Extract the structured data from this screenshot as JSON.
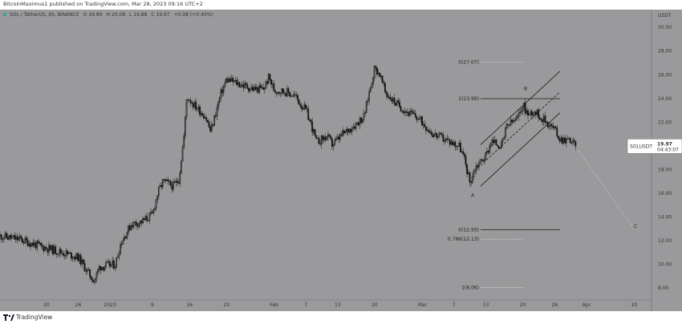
{
  "publisher": "BitcoinMaximus1 published on TradingView.com, Mar 28, 2023 09:16 UTC+2",
  "branding": "TradingView",
  "legend": {
    "pair": "SOL / TetherUS, 6h, BINANCE",
    "o_label": "O",
    "o_value": "19.89",
    "h_label": "H",
    "h_value": "20.08",
    "l_label": "L",
    "l_value": "19.88",
    "c_label": "C",
    "c_value": "19.97",
    "change": "+0.08 (+0.40%)",
    "status_color": "#26a69a"
  },
  "price_tag": {
    "symbol": "SOLUSDT",
    "price": "19.97",
    "countdown": "04:43:07"
  },
  "colors": {
    "background": "#9a9a9c",
    "candle": "#111111",
    "line": "#1a1a1a",
    "projection": "#cfcfcf"
  },
  "chart_data": {
    "type": "candlestick",
    "y_axis_title": "USDT",
    "y_ticks": [
      "8.00",
      "10.00",
      "12.00",
      "14.00",
      "16.00",
      "18.00",
      "20.00",
      "22.00",
      "24.00",
      "26.00",
      "28.00",
      "30.00"
    ],
    "ylim": [
      7,
      31.5
    ],
    "x_ticks": [
      "20",
      "26",
      "2023",
      "9",
      "16",
      "23",
      "Feb",
      "7",
      "13",
      "20",
      "Mar",
      "7",
      "13",
      "20",
      "26",
      "Apr",
      "10"
    ],
    "x_tick_days": [
      -12,
      -6,
      0,
      8,
      15,
      22,
      31,
      37,
      43,
      50,
      59,
      65,
      71,
      78,
      84,
      90,
      99
    ],
    "xlim": [
      -20.8,
      102.3
    ],
    "close_path": [
      [
        -20.8,
        12.4
      ],
      [
        -17,
        12.1
      ],
      [
        -13,
        11.5
      ],
      [
        -9,
        11.0
      ],
      [
        -6,
        10.6
      ],
      [
        -4,
        9.2
      ],
      [
        -3,
        8.6
      ],
      [
        -2,
        9.8
      ],
      [
        1,
        10.0
      ],
      [
        2,
        11.8
      ],
      [
        4,
        13.4
      ],
      [
        6,
        13.6
      ],
      [
        8,
        14.2
      ],
      [
        9,
        16.0
      ],
      [
        10,
        17.0
      ],
      [
        12,
        16.6
      ],
      [
        13,
        17.2
      ],
      [
        14,
        21.0
      ],
      [
        14.5,
        24.2
      ],
      [
        16,
        23.4
      ],
      [
        18,
        22.5
      ],
      [
        19,
        21.2
      ],
      [
        21,
        24.5
      ],
      [
        22,
        25.6
      ],
      [
        24,
        25.3
      ],
      [
        27,
        24.8
      ],
      [
        29,
        24.8
      ],
      [
        30,
        25.8
      ],
      [
        31,
        24.7
      ],
      [
        33,
        24.6
      ],
      [
        35,
        24.2
      ],
      [
        36,
        23.5
      ],
      [
        37,
        23.0
      ],
      [
        38,
        21.8
      ],
      [
        39,
        20.3
      ],
      [
        41,
        20.8
      ],
      [
        42,
        20.1
      ],
      [
        44,
        21.0
      ],
      [
        46,
        21.7
      ],
      [
        48,
        22.5
      ],
      [
        49,
        24.6
      ],
      [
        50,
        26.6
      ],
      [
        51,
        26.0
      ],
      [
        52,
        24.5
      ],
      [
        54,
        23.6
      ],
      [
        56,
        22.9
      ],
      [
        58,
        22.4
      ],
      [
        59,
        22.0
      ],
      [
        61,
        21.0
      ],
      [
        63,
        20.6
      ],
      [
        66,
        20.0
      ],
      [
        67,
        18.8
      ],
      [
        68,
        16.9
      ],
      [
        69,
        18.2
      ],
      [
        71,
        19.2
      ],
      [
        72,
        20.4
      ],
      [
        74,
        20.0
      ],
      [
        75,
        21.7
      ],
      [
        77,
        22.3
      ],
      [
        78,
        23.5
      ],
      [
        79,
        22.6
      ],
      [
        80,
        23.0
      ],
      [
        81,
        22.6
      ],
      [
        82,
        22.2
      ],
      [
        84,
        21.4
      ],
      [
        85,
        20.6
      ],
      [
        87,
        20.5
      ],
      [
        88,
        19.97
      ]
    ],
    "channel_lines": [
      {
        "from": [
          70,
          20.1
        ],
        "to": [
          85,
          26.3
        ]
      },
      {
        "from": [
          70,
          16.6
        ],
        "to": [
          85,
          22.8
        ]
      },
      {
        "from": [
          70,
          18.35
        ],
        "to": [
          85,
          24.55
        ],
        "dashed": true
      }
    ],
    "horizontal_levels": [
      {
        "label": "0(27.07)",
        "value": 27.07,
        "x_from": 70,
        "x_to": 78,
        "dotted": true
      },
      {
        "label": "1(23.99)",
        "value": 23.99,
        "x_from": 70,
        "x_to": 85,
        "dotted": false
      },
      {
        "label": "0(12.93)",
        "value": 12.93,
        "x_from": 70,
        "x_to": 85,
        "dotted": false
      },
      {
        "label": "0.786(12.13)",
        "value": 12.13,
        "x_from": 70,
        "x_to": 78,
        "dotted": true
      },
      {
        "label": "1(8.06)",
        "value": 8.06,
        "x_from": 70,
        "x_to": 78,
        "dotted": true
      }
    ],
    "projection": {
      "from": [
        88.5,
        19.6
      ],
      "to": [
        98.5,
        13.3
      ]
    },
    "wave_labels": [
      {
        "text": "A",
        "x": 68.5,
        "y": 15.7
      },
      {
        "text": "B",
        "x": 78.5,
        "y": 24.7
      },
      {
        "text": "C",
        "x": 99.3,
        "y": 13.1
      }
    ]
  }
}
